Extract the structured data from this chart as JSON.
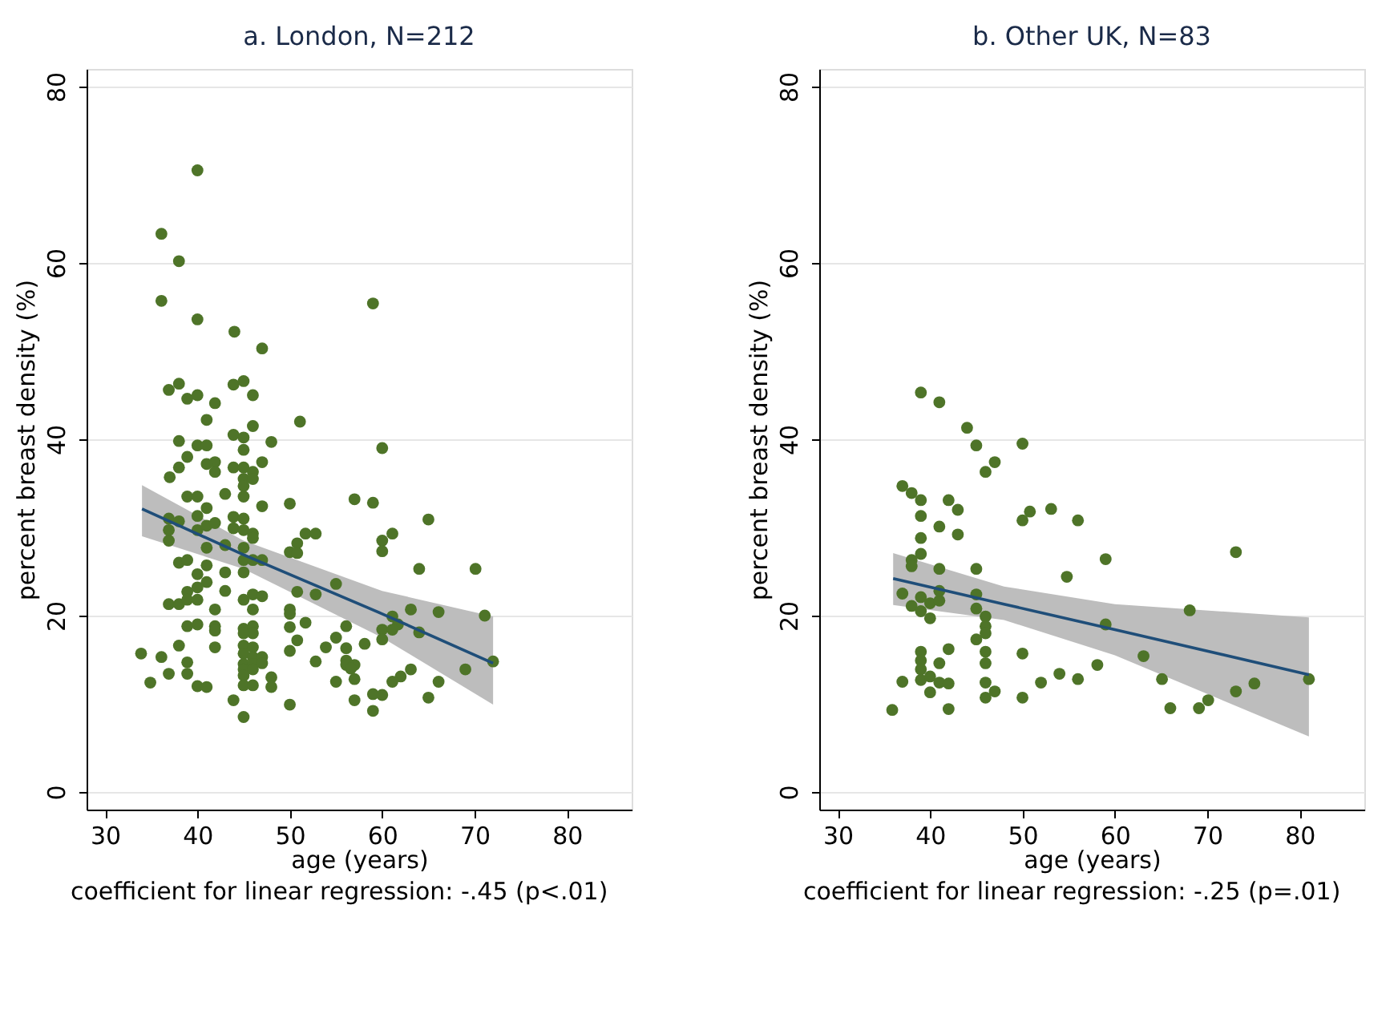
{
  "chart_data": [
    {
      "type": "scatter",
      "title": "a. London, N=212",
      "xlabel": "age (years)",
      "ylabel": "percent breast density (%)",
      "annotations": [
        "coefficient for linear regression: -.45 (p<.01)"
      ],
      "xlim": [
        28,
        87
      ],
      "ylim": [
        -2,
        82
      ],
      "xticks": [
        30,
        40,
        50,
        60,
        70,
        80
      ],
      "yticks": [
        0,
        20,
        40,
        60,
        80
      ],
      "grid": "y",
      "series": [
        {
          "type": "scatter",
          "marker": "circle",
          "color": "#4e7428",
          "x": [
            40,
            36.1,
            38,
            36.1,
            40,
            44,
            47,
            36.9,
            38,
            38.9,
            40,
            41.9,
            43.9,
            45,
            46,
            41,
            43.9,
            45,
            46,
            51.1,
            38,
            40,
            41,
            48,
            59,
            45,
            38.9,
            38,
            41.9,
            41.9,
            41,
            37,
            43.9,
            45,
            46,
            47,
            45,
            46,
            45,
            38.9,
            40,
            43,
            45,
            47,
            50,
            41,
            36.9,
            38,
            40,
            43.9,
            45,
            36.9,
            36.9,
            40,
            41,
            41.9,
            43.9,
            45,
            46,
            41,
            43,
            45,
            46,
            45,
            46,
            47,
            50.8,
            51.7,
            52.8,
            50,
            50.8,
            38,
            38.9,
            41,
            40,
            43,
            45,
            41,
            40,
            38.9,
            43,
            45,
            46,
            47,
            50.8,
            52.8,
            36.9,
            38,
            38.9,
            40,
            41.9,
            46,
            50,
            50,
            38.9,
            40,
            41.9,
            45,
            46,
            41.9,
            46,
            45,
            50,
            51.7,
            50.8,
            38,
            41.9,
            45,
            46,
            50,
            53.9,
            33.9,
            36.1,
            45,
            46,
            47,
            38.9,
            52.8,
            45,
            46,
            47,
            36.9,
            38.9,
            45,
            46,
            48,
            45,
            34.9,
            40,
            41,
            45,
            46,
            48,
            43.9,
            50,
            45,
            60,
            57,
            59,
            65,
            61.1,
            60,
            60,
            64,
            70.1,
            55,
            63.1,
            66.1,
            71.1,
            61.1,
            61.7,
            60,
            61.1,
            64,
            60,
            56.1,
            55,
            58.1,
            56.1,
            56.1,
            56.1,
            57,
            56.6,
            57,
            55,
            63.1,
            62,
            61.1,
            69,
            72,
            66.1,
            65,
            59,
            60,
            57,
            59
          ],
          "values": [
            70.5,
            63.3,
            60.2,
            55.7,
            53.6,
            52.2,
            50.3,
            45.6,
            46.3,
            44.6,
            45,
            44.1,
            46.2,
            46.6,
            45,
            42.2,
            40.5,
            40.2,
            41.5,
            42,
            39.8,
            39.3,
            39.3,
            39.7,
            55.4,
            38.8,
            38,
            36.8,
            37.4,
            36.3,
            37.2,
            35.7,
            36.8,
            36.8,
            36.3,
            37.4,
            35.5,
            35.5,
            34.7,
            33.5,
            33.5,
            33.8,
            33.5,
            32.4,
            32.7,
            32.2,
            31,
            30.7,
            31.3,
            31.2,
            31,
            29.7,
            28.5,
            29.7,
            30.2,
            30.5,
            29.9,
            29.7,
            29.3,
            27.7,
            28,
            27.7,
            28.8,
            26.3,
            26.3,
            26.3,
            28.2,
            29.3,
            29.3,
            27.2,
            27.1,
            26,
            26.3,
            25.7,
            24.7,
            24.9,
            24.9,
            23.8,
            23.2,
            22.7,
            22.8,
            21.8,
            22.4,
            22.2,
            22.7,
            22.4,
            21.3,
            21.3,
            21.8,
            21.8,
            20.7,
            20.7,
            20.7,
            20.2,
            18.8,
            19,
            18.8,
            18.5,
            18.8,
            18.3,
            18,
            18,
            18.7,
            19.2,
            17.2,
            16.6,
            16.4,
            16.6,
            16.4,
            16,
            16.4,
            15.7,
            15.3,
            15.7,
            15.3,
            15.3,
            14.7,
            14.8,
            14.5,
            14.5,
            14.6,
            13.4,
            13.4,
            13.9,
            13.9,
            13,
            13.2,
            12.4,
            12,
            11.9,
            12.1,
            12.1,
            11.9,
            10.4,
            9.9,
            8.5,
            39,
            33.2,
            32.8,
            30.9,
            29.3,
            28.5,
            27.3,
            25.3,
            25.3,
            23.6,
            20.7,
            20.4,
            20,
            19.9,
            19,
            18.4,
            18.4,
            18.1,
            17.3,
            18.8,
            17.5,
            16.8,
            16.3,
            14.9,
            14.4,
            14.4,
            14,
            12.8,
            12.5,
            13.9,
            13.1,
            12.5,
            13.9,
            14.8,
            12.5,
            10.7,
            11.1,
            11,
            10.4,
            9.2
          ]
        },
        {
          "type": "line",
          "color": "#1f4e79",
          "x": [
            34,
            45,
            60,
            72
          ],
          "values": [
            32.1,
            26.9,
            20.2,
            14.6
          ],
          "lower": [
            29,
            25.3,
            17.5,
            9.9
          ],
          "upper": [
            34.8,
            28.5,
            22.8,
            19.9
          ]
        }
      ]
    },
    {
      "type": "scatter",
      "title": "b. Other UK, N=83",
      "xlabel": "age (years)",
      "ylabel": "percent breast density (%)",
      "annotations": [
        "coefficient for linear regression: -.25 (p=.01)"
      ],
      "xlim": [
        28,
        87
      ],
      "ylim": [
        -2,
        82
      ],
      "xticks": [
        30,
        40,
        50,
        60,
        70,
        80
      ],
      "yticks": [
        0,
        20,
        40,
        60,
        80
      ],
      "grid": "y",
      "series": [
        {
          "type": "scatter",
          "marker": "circle",
          "color": "#4e7428",
          "x": [
            39,
            41,
            44,
            45,
            50,
            47,
            46,
            37,
            38,
            39,
            39,
            42,
            43,
            41,
            43,
            50,
            50.8,
            53.1,
            39,
            39,
            38,
            38,
            41,
            45,
            37,
            39,
            38,
            39,
            40,
            41,
            41,
            40,
            45,
            45,
            46,
            46,
            46,
            45,
            39,
            39,
            39,
            39,
            42,
            41,
            37,
            40,
            41,
            42,
            40,
            46,
            46,
            46,
            47,
            46,
            50,
            50,
            52,
            54,
            35.9,
            42,
            54.8,
            56,
            59,
            73.1,
            68.1,
            59,
            63.1,
            58.1,
            56,
            65.1,
            75.1,
            73.1,
            66,
            69.1,
            70.1,
            81
          ],
          "values": [
            45.3,
            44.2,
            41.3,
            39.3,
            39.5,
            37.4,
            36.3,
            34.7,
            33.9,
            33.1,
            31.3,
            33.1,
            32,
            30.1,
            29.2,
            30.8,
            31.8,
            32.1,
            28.8,
            27,
            26.3,
            25.6,
            25.3,
            25.3,
            22.5,
            22.1,
            21.1,
            20.5,
            21.4,
            21.7,
            22.8,
            19.7,
            22.4,
            20.8,
            19.9,
            18.8,
            18,
            17.3,
            15.9,
            14.9,
            13.9,
            12.7,
            16.2,
            14.6,
            12.5,
            13.1,
            12.4,
            12.3,
            11.3,
            15.9,
            14.6,
            12.4,
            11.4,
            10.7,
            15.7,
            10.7,
            12.4,
            13.4,
            9.3,
            9.4,
            24.4,
            30.8,
            26.4,
            27.2,
            20.6,
            19,
            15.4,
            14.4,
            12.8,
            12.8,
            12.3,
            11.4,
            9.5,
            9.5,
            10.4,
            12.8
          ]
        },
        {
          "type": "line",
          "color": "#1f4e79",
          "x": [
            36,
            48,
            60,
            81
          ],
          "values": [
            24.2,
            21.3,
            18.4,
            13.3
          ],
          "lower": [
            21.2,
            19.5,
            15.5,
            6.3
          ],
          "upper": [
            27.1,
            23.3,
            21.3,
            19.8
          ]
        }
      ]
    }
  ]
}
